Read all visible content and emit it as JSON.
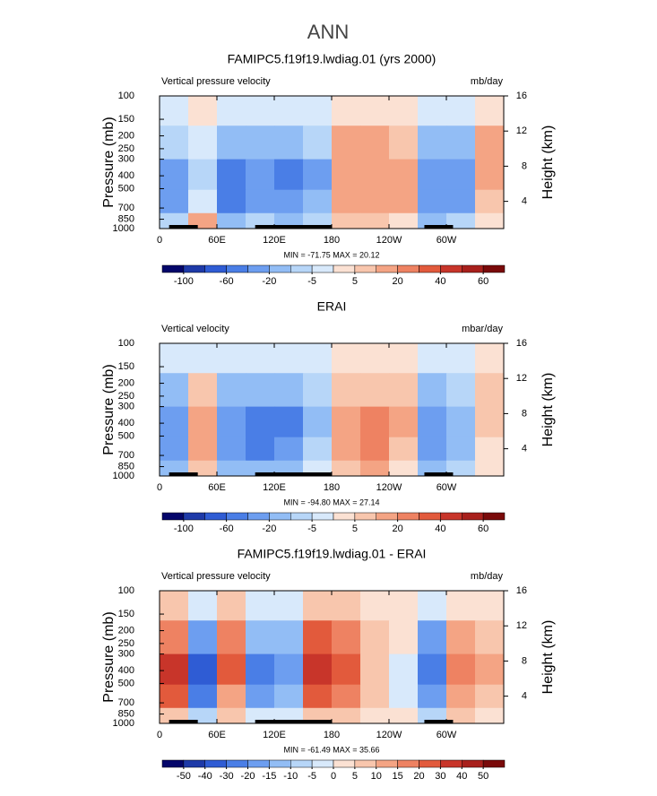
{
  "title": "ANN",
  "chart_data": [
    {
      "type": "contour",
      "title": "FAMIPC5.f19f19.lwdiag.01 (yrs 2000)",
      "left_label": "Vertical pressure velocity",
      "units": "mb/day",
      "ylabel": "Pressure (mb)",
      "y2label": "Height (km)",
      "stats": "MIN = -71.75   MAX =  20.12",
      "x": [
        15,
        45,
        75,
        105,
        135,
        165,
        195,
        225,
        255,
        285,
        315,
        345
      ],
      "y": [
        125,
        225,
        400,
        650,
        900
      ],
      "z": [
        [
          -2,
          0,
          -5,
          -5,
          -5,
          -5,
          3,
          3,
          3,
          -2,
          -5,
          3
        ],
        [
          -10,
          -5,
          -20,
          -20,
          -20,
          -10,
          10,
          10,
          5,
          -20,
          -20,
          10
        ],
        [
          -30,
          -10,
          -60,
          -40,
          -60,
          -30,
          15,
          15,
          10,
          -40,
          -40,
          10
        ],
        [
          -30,
          -5,
          -60,
          -40,
          -40,
          -20,
          15,
          15,
          10,
          -30,
          -30,
          5
        ],
        [
          -10,
          10,
          -20,
          -10,
          -20,
          -10,
          5,
          5,
          3,
          -20,
          -10,
          0
        ]
      ],
      "xlim": [
        0,
        360
      ],
      "xticks": [
        0,
        {
          "value": 60,
          "label": "60E"
        },
        {
          "value": 120,
          "label": "120E"
        },
        180,
        {
          "value": 240,
          "label": "120W"
        },
        {
          "value": 300,
          "label": "60W"
        }
      ],
      "ylim": [
        1000,
        100
      ],
      "ylog": true,
      "yticks": [
        100,
        150,
        200,
        250,
        300,
        400,
        500,
        700,
        850,
        1000
      ],
      "y2lim": [
        0.9,
        16
      ],
      "y2ticks": [
        4,
        8,
        12,
        16
      ],
      "levels": [
        -100,
        -80,
        -60,
        -40,
        -20,
        -10,
        -5,
        0,
        5,
        10,
        20,
        30,
        40,
        50,
        60
      ],
      "cbticks": [
        -100,
        -60,
        -20,
        -5,
        5,
        20,
        40,
        60
      ],
      "colors": [
        "#04066a",
        "#1e3aa8",
        "#2f5cd4",
        "#4a7ee6",
        "#6d9ef0",
        "#92bdf5",
        "#b7d6f8",
        "#d8e9fb",
        "#fbe1d3",
        "#f8c6ad",
        "#f4a484",
        "#ee8262",
        "#e25a3c",
        "#c8352a",
        "#a8201c",
        "#7a0a0a"
      ]
    },
    {
      "type": "contour",
      "title": "ERAI",
      "left_label": "Vertical velocity",
      "units": "mbar/day",
      "ylabel": "Pressure (mb)",
      "y2label": "Height (km)",
      "stats": "MIN = -94.80   MAX =  27.14",
      "x": [
        15,
        45,
        75,
        105,
        135,
        165,
        195,
        225,
        255,
        285,
        315,
        345
      ],
      "y": [
        125,
        225,
        400,
        650,
        900
      ],
      "z": [
        [
          -5,
          -2,
          -5,
          -5,
          -5,
          -5,
          3,
          3,
          3,
          -5,
          -2,
          3
        ],
        [
          -20,
          5,
          -20,
          -20,
          -20,
          -10,
          5,
          5,
          5,
          -20,
          -10,
          5
        ],
        [
          -40,
          10,
          -40,
          -60,
          -60,
          -20,
          10,
          20,
          10,
          -40,
          -20,
          5
        ],
        [
          -40,
          10,
          -40,
          -60,
          -40,
          -10,
          10,
          20,
          5,
          -40,
          -20,
          3
        ],
        [
          -20,
          5,
          -20,
          -20,
          -20,
          -5,
          5,
          10,
          3,
          -20,
          -10,
          3
        ]
      ],
      "xlim": [
        0,
        360
      ],
      "xticks": [
        0,
        {
          "value": 60,
          "label": "60E"
        },
        {
          "value": 120,
          "label": "120E"
        },
        180,
        {
          "value": 240,
          "label": "120W"
        },
        {
          "value": 300,
          "label": "60W"
        }
      ],
      "ylim": [
        1000,
        100
      ],
      "ylog": true,
      "yticks": [
        100,
        150,
        200,
        250,
        300,
        400,
        500,
        700,
        850,
        1000
      ],
      "y2lim": [
        0.9,
        16
      ],
      "y2ticks": [
        4,
        8,
        12,
        16
      ],
      "levels": [
        -100,
        -80,
        -60,
        -40,
        -20,
        -10,
        -5,
        0,
        5,
        10,
        20,
        30,
        40,
        50,
        60
      ],
      "cbticks": [
        -100,
        -60,
        -20,
        -5,
        5,
        20,
        40,
        60
      ],
      "colors": [
        "#04066a",
        "#1e3aa8",
        "#2f5cd4",
        "#4a7ee6",
        "#6d9ef0",
        "#92bdf5",
        "#b7d6f8",
        "#d8e9fb",
        "#fbe1d3",
        "#f8c6ad",
        "#f4a484",
        "#ee8262",
        "#e25a3c",
        "#c8352a",
        "#a8201c",
        "#7a0a0a"
      ]
    },
    {
      "type": "contour",
      "title": "FAMIPC5.f19f19.lwdiag.01 - ERAI",
      "left_label": "Vertical pressure velocity",
      "units": "mb/day",
      "ylabel": "Pressure (mb)",
      "y2label": "Height (km)",
      "stats": "MIN = -61.49   MAX =  35.66",
      "x": [
        15,
        45,
        75,
        105,
        135,
        165,
        195,
        225,
        255,
        285,
        315,
        345
      ],
      "y": [
        125,
        225,
        400,
        650,
        900
      ],
      "z": [
        [
          5,
          -5,
          5,
          -5,
          -5,
          5,
          5,
          3,
          0,
          -5,
          3,
          3
        ],
        [
          15,
          -20,
          15,
          -15,
          -15,
          20,
          15,
          5,
          0,
          -20,
          10,
          5
        ],
        [
          30,
          -40,
          20,
          -30,
          -20,
          30,
          20,
          5,
          -2,
          -30,
          15,
          10
        ],
        [
          20,
          -30,
          10,
          -20,
          -15,
          20,
          15,
          5,
          -2,
          -20,
          10,
          5
        ],
        [
          5,
          -10,
          5,
          -5,
          -5,
          5,
          5,
          0,
          0,
          -10,
          5,
          0
        ]
      ],
      "xlim": [
        0,
        360
      ],
      "xticks": [
        0,
        {
          "value": 60,
          "label": "60E"
        },
        {
          "value": 120,
          "label": "120E"
        },
        180,
        {
          "value": 240,
          "label": "120W"
        },
        {
          "value": 300,
          "label": "60W"
        }
      ],
      "ylim": [
        1000,
        100
      ],
      "ylog": true,
      "yticks": [
        100,
        150,
        200,
        250,
        300,
        400,
        500,
        700,
        850,
        1000
      ],
      "y2lim": [
        0.9,
        16
      ],
      "y2ticks": [
        4,
        8,
        12,
        16
      ],
      "levels": [
        -50,
        -40,
        -30,
        -20,
        -15,
        -10,
        -5,
        0,
        5,
        10,
        15,
        20,
        30,
        40,
        50
      ],
      "cbticks": [
        -50,
        -40,
        -30,
        -20,
        -15,
        -10,
        -5,
        0,
        5,
        10,
        15,
        20,
        30,
        40,
        50
      ],
      "colors": [
        "#04066a",
        "#1e3aa8",
        "#2f5cd4",
        "#4a7ee6",
        "#6d9ef0",
        "#92bdf5",
        "#b7d6f8",
        "#d8e9fb",
        "#fbe1d3",
        "#f8c6ad",
        "#f4a484",
        "#ee8262",
        "#e25a3c",
        "#c8352a",
        "#a8201c",
        "#7a0a0a"
      ]
    }
  ]
}
